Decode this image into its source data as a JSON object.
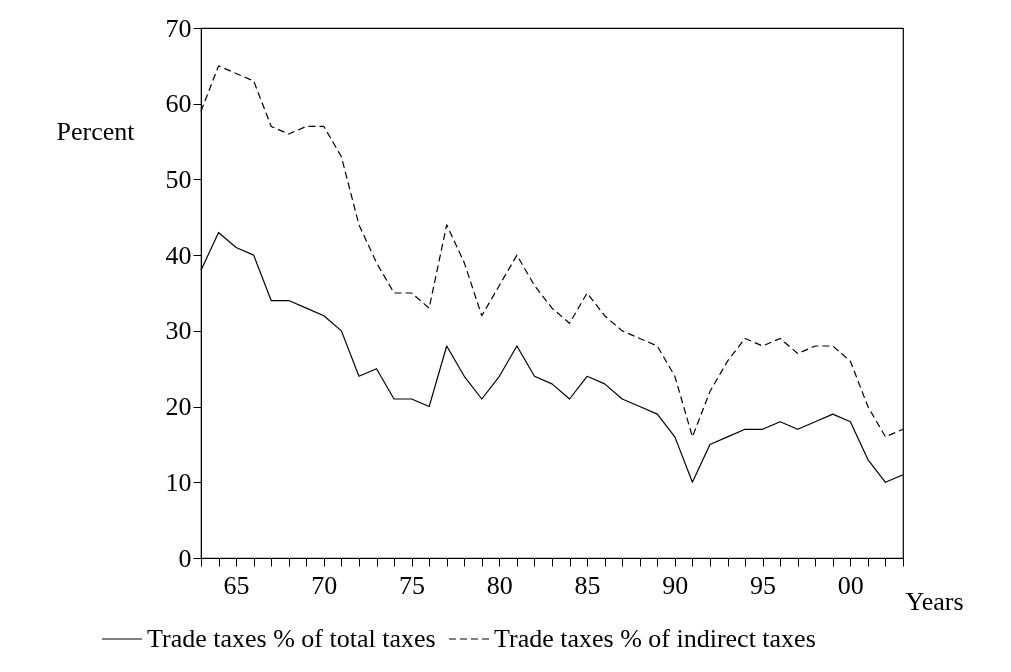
{
  "chart_data": {
    "type": "line",
    "xlabel": "Years",
    "ylabel": "Percent",
    "legend": "bottom",
    "x": [
      1963,
      1964,
      1965,
      1966,
      1967,
      1968,
      1969,
      1970,
      1971,
      1972,
      1973,
      1974,
      1975,
      1976,
      1977,
      1978,
      1979,
      1980,
      1981,
      1982,
      1983,
      1984,
      1985,
      1986,
      1987,
      1988,
      1989,
      1990,
      1991,
      1992,
      1993,
      1994,
      1995,
      1996,
      1997,
      1998,
      1999,
      2000,
      2001,
      2002,
      2003
    ],
    "series": [
      {
        "name": "Trade taxes % of total taxes",
        "color": "#000000",
        "line_style": "solid",
        "values": [
          38,
          43,
          41,
          40,
          34,
          34,
          33,
          32,
          30,
          24,
          25,
          21,
          21,
          20,
          28,
          24,
          21,
          24,
          28,
          24,
          23,
          21,
          24,
          23,
          21,
          20,
          19,
          16,
          10,
          15,
          16,
          17,
          17,
          18,
          17,
          18,
          19,
          18,
          13,
          10,
          11
        ]
      },
      {
        "name": "Trade taxes % of indirect taxes",
        "color": "#000000",
        "line_style": "dashed",
        "values": [
          59,
          65,
          64,
          63,
          57,
          56,
          57,
          57,
          53,
          44,
          39,
          35,
          35,
          33,
          44,
          39,
          32,
          36,
          40,
          36,
          33,
          31,
          35,
          32,
          30,
          29,
          28,
          24,
          16,
          22,
          26,
          29,
          28,
          29,
          27,
          28,
          28,
          26,
          20,
          16,
          17
        ]
      }
    ],
    "xlim": [
      1963,
      2003
    ],
    "xticks": [
      {
        "value": 1963,
        "label": null
      },
      {
        "value": 1964,
        "label": null
      },
      {
        "value": 1965,
        "label": "65"
      },
      {
        "value": 1966,
        "label": null
      },
      {
        "value": 1967,
        "label": null
      },
      {
        "value": 1968,
        "label": null
      },
      {
        "value": 1969,
        "label": null
      },
      {
        "value": 1970,
        "label": "70"
      },
      {
        "value": 1971,
        "label": null
      },
      {
        "value": 1972,
        "label": null
      },
      {
        "value": 1973,
        "label": null
      },
      {
        "value": 1974,
        "label": null
      },
      {
        "value": 1975,
        "label": "75"
      },
      {
        "value": 1976,
        "label": null
      },
      {
        "value": 1977,
        "label": null
      },
      {
        "value": 1978,
        "label": null
      },
      {
        "value": 1979,
        "label": null
      },
      {
        "value": 1980,
        "label": "80"
      },
      {
        "value": 1981,
        "label": null
      },
      {
        "value": 1982,
        "label": null
      },
      {
        "value": 1983,
        "label": null
      },
      {
        "value": 1984,
        "label": null
      },
      {
        "value": 1985,
        "label": "85"
      },
      {
        "value": 1986,
        "label": null
      },
      {
        "value": 1987,
        "label": null
      },
      {
        "value": 1988,
        "label": null
      },
      {
        "value": 1989,
        "label": null
      },
      {
        "value": 1990,
        "label": "90"
      },
      {
        "value": 1991,
        "label": null
      },
      {
        "value": 1992,
        "label": null
      },
      {
        "value": 1993,
        "label": null
      },
      {
        "value": 1994,
        "label": null
      },
      {
        "value": 1995,
        "label": "95"
      },
      {
        "value": 1996,
        "label": null
      },
      {
        "value": 1997,
        "label": null
      },
      {
        "value": 1998,
        "label": null
      },
      {
        "value": 1999,
        "label": null
      },
      {
        "value": 2000,
        "label": "00"
      },
      {
        "value": 2001,
        "label": null
      },
      {
        "value": 2002,
        "label": null
      },
      {
        "value": 2003,
        "label": null
      }
    ],
    "ylim": [
      0,
      70
    ],
    "yticks": [
      0,
      10,
      20,
      30,
      40,
      50,
      60,
      70
    ]
  }
}
